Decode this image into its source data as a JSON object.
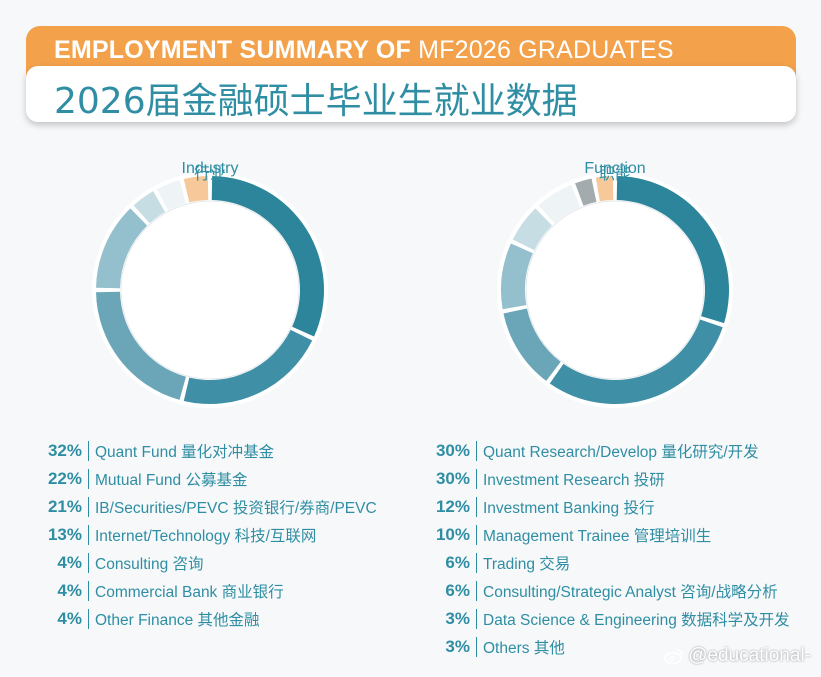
{
  "header": {
    "title_en_bold": "EMPLOYMENT SUMMARY OF",
    "title_en_light": "MF2026 GRADUATES",
    "title_cn": "2026届金融硕士毕业生就业数据"
  },
  "chart_data": [
    {
      "type": "pie",
      "center_label_en": "Industry",
      "center_label_cn": "行业",
      "slices": [
        {
          "label": "Quant Fund 量化对冲基金",
          "value": 32,
          "pct_text": "32%",
          "color": "#2d859b"
        },
        {
          "label": "Mutual Fund 公募基金",
          "value": 22,
          "pct_text": "22%",
          "color": "#3f8fa6"
        },
        {
          "label": "IB/Securities/PEVC 投资银行/券商/PEVC",
          "value": 21,
          "pct_text": "21%",
          "color": "#6aa6b8"
        },
        {
          "label": "Internet/Technology 科技/互联网",
          "value": 13,
          "pct_text": "13%",
          "color": "#94bfcc"
        },
        {
          "label": "Consulting 咨询",
          "value": 4,
          "pct_text": "4%",
          "color": "#c7dde4"
        },
        {
          "label": "Commercial Bank 商业银行",
          "value": 4,
          "pct_text": "4%",
          "color": "#eef4f6"
        },
        {
          "label": "Other Finance 其他金融",
          "value": 4,
          "pct_text": "4%",
          "color": "#f7c899"
        }
      ]
    },
    {
      "type": "pie",
      "center_label_en": "Function",
      "center_label_cn": "职能",
      "slices": [
        {
          "label": "Quant Research/Develop 量化研究/开发",
          "value": 30,
          "pct_text": "30%",
          "color": "#2d859b"
        },
        {
          "label": "Investment Research 投研",
          "value": 30,
          "pct_text": "30%",
          "color": "#3f8fa6"
        },
        {
          "label": "Investment Banking 投行",
          "value": 12,
          "pct_text": "12%",
          "color": "#6aa6b8"
        },
        {
          "label": "Management Trainee 管理培训生",
          "value": 10,
          "pct_text": "10%",
          "color": "#94bfcc"
        },
        {
          "label": "Trading 交易",
          "value": 6,
          "pct_text": "6%",
          "color": "#c7dde4"
        },
        {
          "label": "Consulting/Strategic Analyst 咨询/战略分析",
          "value": 6,
          "pct_text": "6%",
          "color": "#eef4f6"
        },
        {
          "label": "Data Science & Engineering 数据科学及开发",
          "value": 3,
          "pct_text": "3%",
          "color": "#a3abae"
        },
        {
          "label": "Others 其他",
          "value": 3,
          "pct_text": "3%",
          "color": "#f7c899"
        }
      ]
    }
  ],
  "watermark": {
    "text": "@educational-",
    "icon": "weibo-icon"
  }
}
